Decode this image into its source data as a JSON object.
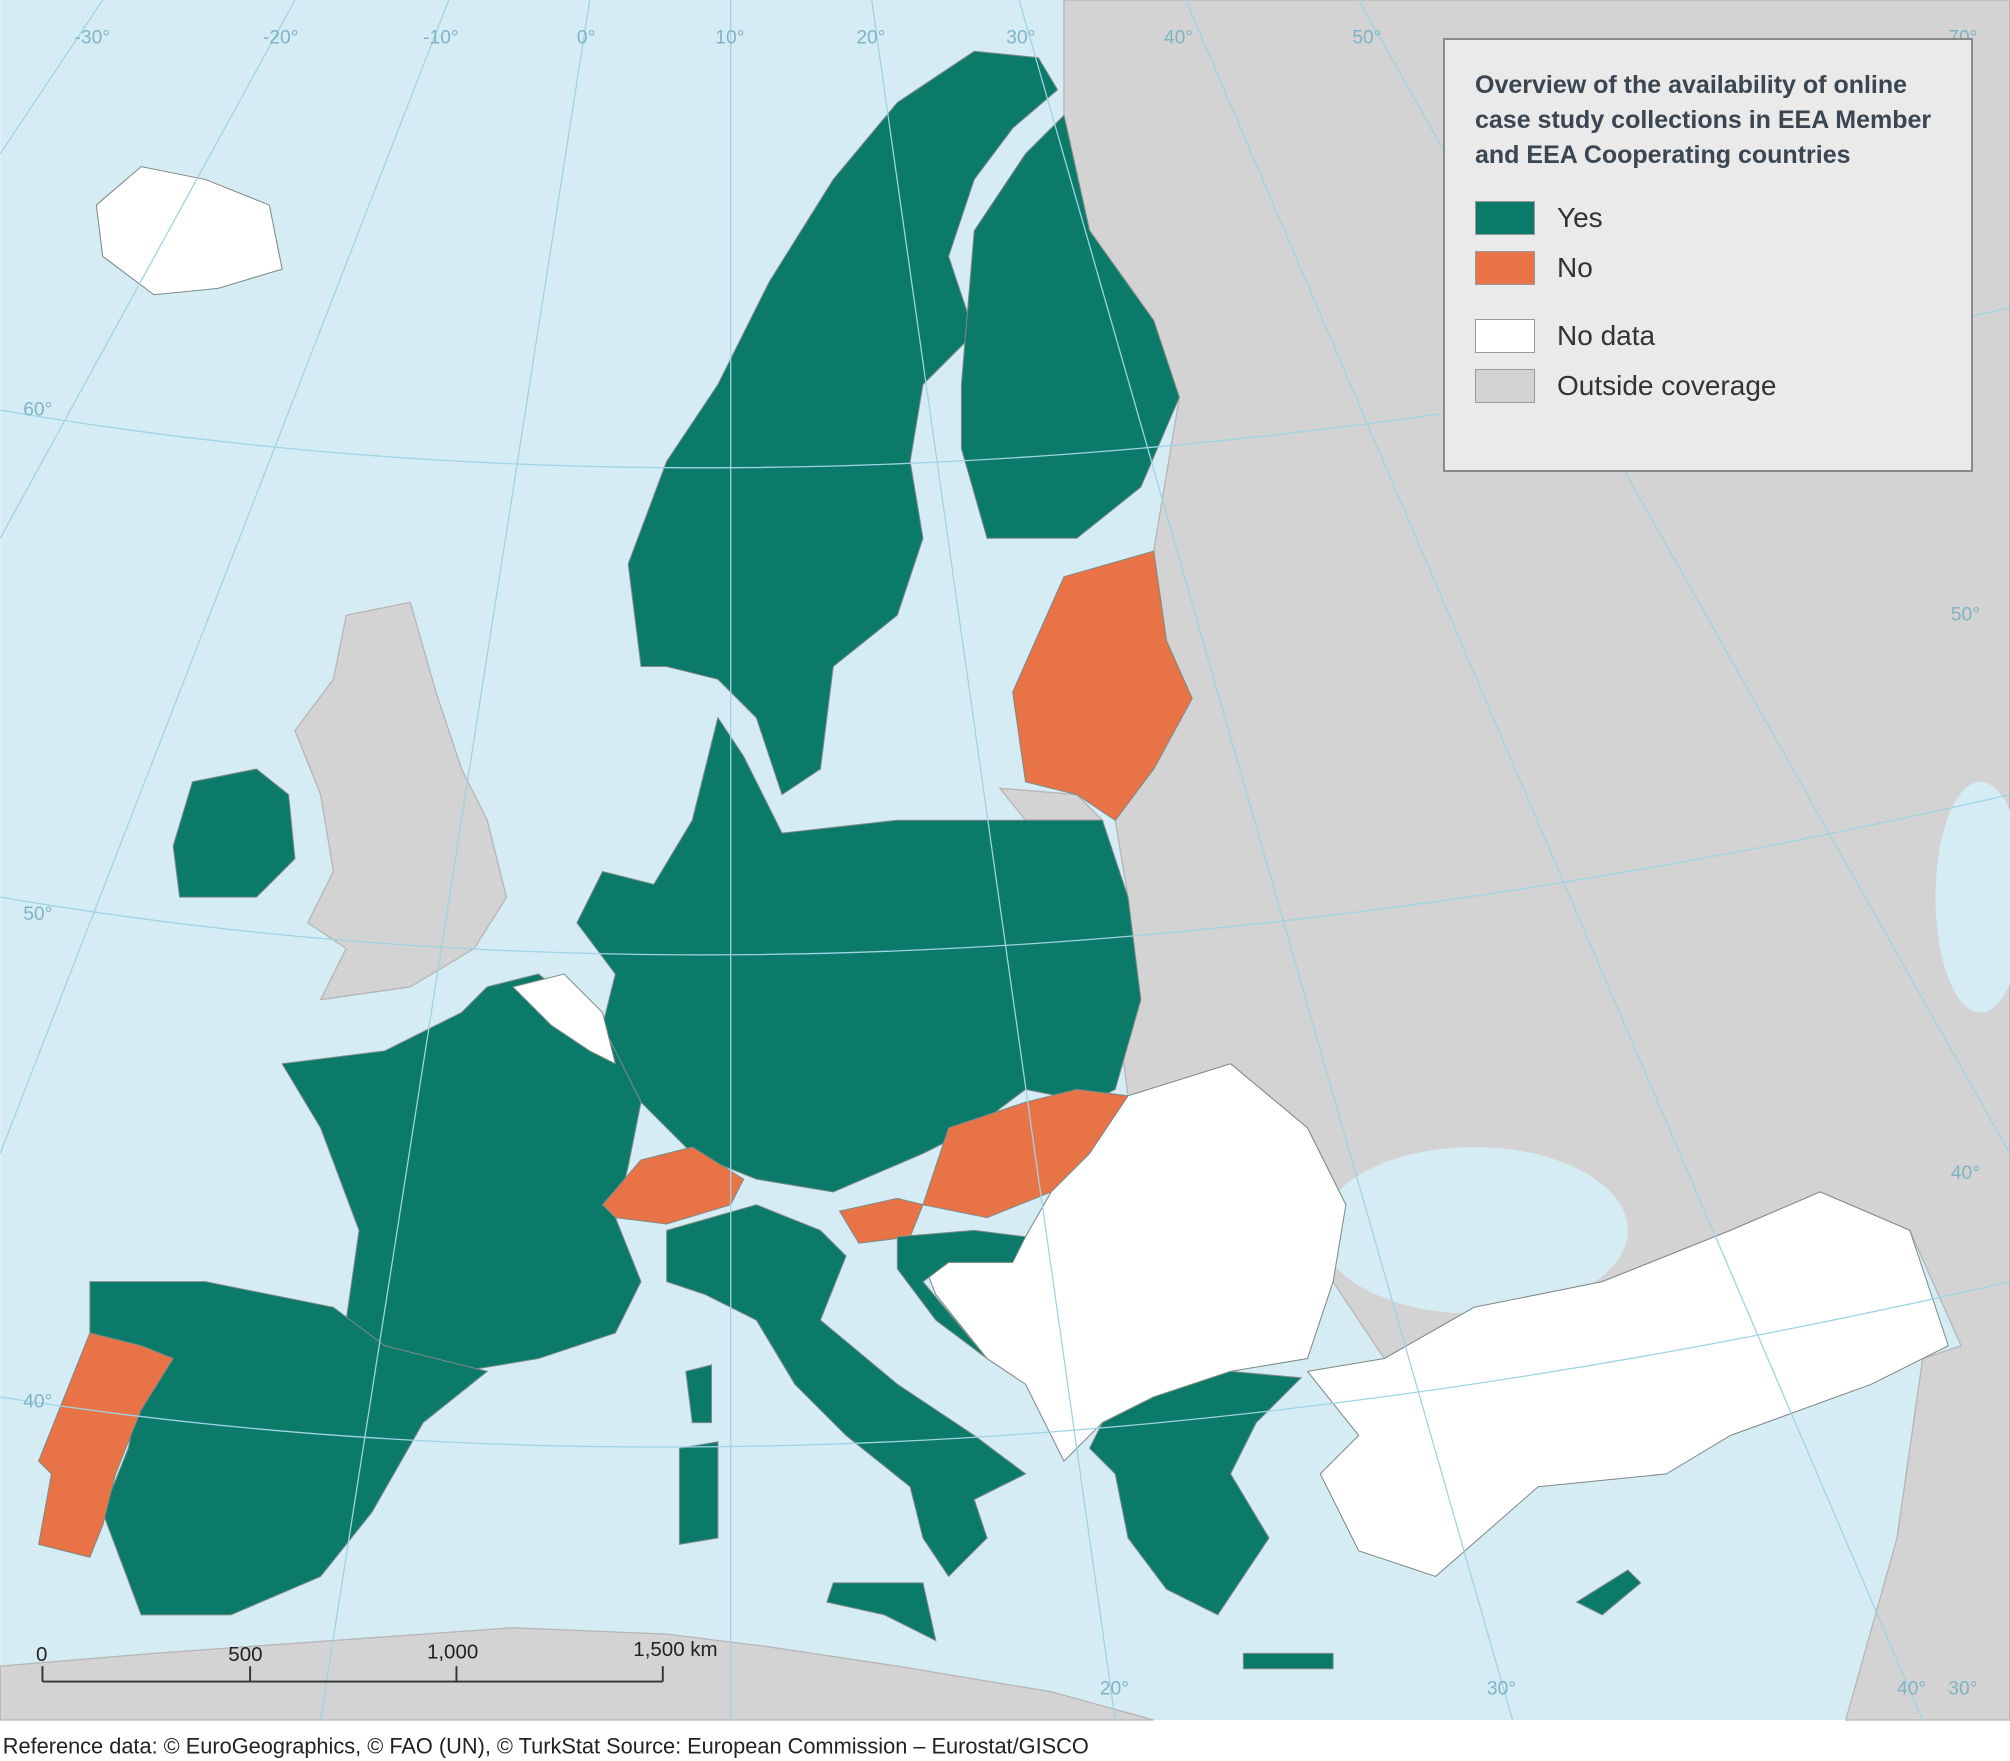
{
  "legend": {
    "title": "Overview of the availability of online case study collections in EEA Member and EEA Cooperating countries",
    "items": [
      {
        "label": "Yes",
        "color": "#0b7a68"
      },
      {
        "label": "No",
        "color": "#e87346"
      },
      {
        "label": "No data",
        "color": "#ffffff"
      },
      {
        "label": "Outside coverage",
        "color": "#d3d3d3"
      }
    ]
  },
  "graticule_labels": [
    "-30°",
    "-20°",
    "-10°",
    "0°",
    "10°",
    "20°",
    "30°",
    "40°",
    "50°",
    "60°",
    "50°",
    "40°",
    "20°",
    "30°",
    "40°",
    "30°",
    "70°",
    "50°",
    "40°"
  ],
  "scale_bar": {
    "labels": [
      "0",
      "500",
      "1,000",
      "1,500 km"
    ]
  },
  "footer": "Reference data: © EuroGeographics, © FAO (UN), © TurkStat Source: European Commission – Eurostat/GISCO"
}
